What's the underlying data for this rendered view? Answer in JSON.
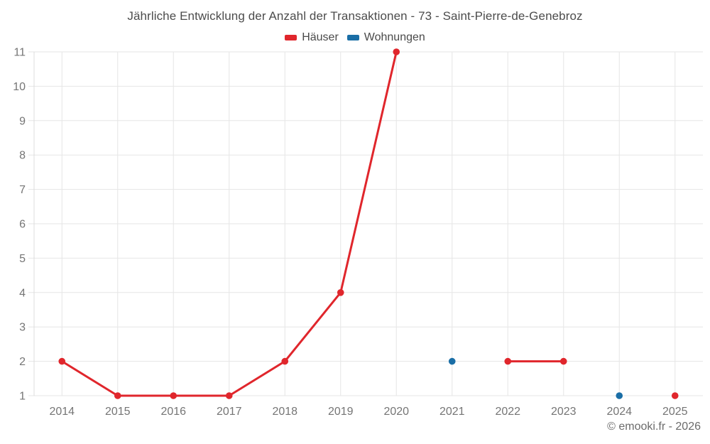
{
  "chart_data": {
    "type": "line",
    "title": "Jährliche Entwicklung der Anzahl der Transaktionen - 73 - Saint-Pierre-de-Genebroz",
    "categories": [
      "2014",
      "2015",
      "2016",
      "2017",
      "2018",
      "2019",
      "2020",
      "2021",
      "2022",
      "2023",
      "2024",
      "2025"
    ],
    "series": [
      {
        "name": "Häuser",
        "color": "#e0262c",
        "values": [
          2,
          1,
          1,
          1,
          2,
          4,
          11,
          null,
          2,
          2,
          null,
          1
        ]
      },
      {
        "name": "Wohnungen",
        "color": "#1a6ea6",
        "values": [
          null,
          null,
          null,
          null,
          null,
          null,
          null,
          2,
          null,
          null,
          1,
          null
        ]
      }
    ],
    "xlabel": "",
    "ylabel": "",
    "ylim": [
      1,
      11
    ],
    "yticks": [
      1,
      2,
      3,
      4,
      5,
      6,
      7,
      8,
      9,
      10,
      11
    ],
    "grid": true,
    "legend_position": "top-center"
  },
  "footer": {
    "text": "© emooki.fr - 2026"
  },
  "colors": {
    "background": "#ffffff",
    "grid": "#e6e6e6",
    "axis_line": "#dcdcdc",
    "tick_label": "#757575",
    "title_text": "#4c4c4c",
    "legend_text": "#4a4a4a",
    "footer_text": "#6b6b6b",
    "haeuser": "#e0262c",
    "wohnungen": "#1a6ea6"
  }
}
